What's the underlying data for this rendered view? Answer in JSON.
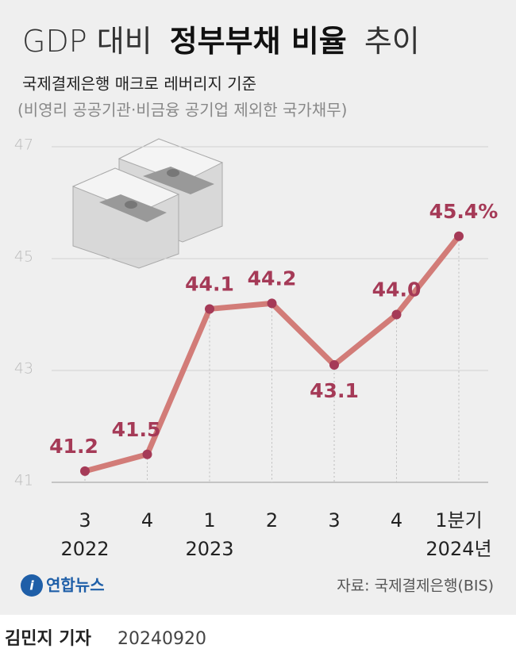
{
  "chart_data": {
    "type": "line",
    "title": [
      "GDP 대비",
      "정부부채 비율",
      "추이"
    ],
    "subtitle": "국제결제은행 매크로 레버리지 기준",
    "note": "(비영리 공공기관·비금융 공기업 제외한 국가채무)",
    "categories": [
      "3",
      "4",
      "1",
      "2",
      "3",
      "4",
      "1분기"
    ],
    "year_labels": [
      "2022",
      null,
      "2023",
      null,
      null,
      null,
      "2024년"
    ],
    "series": [
      {
        "name": "GDP 대비 정부부채 비율",
        "color": "#d27c78",
        "marker_color": "#a53a57",
        "values": [
          41.2,
          41.5,
          44.1,
          44.2,
          43.1,
          44.0,
          45.4
        ],
        "value_labels": [
          "41.2",
          "41.5",
          "44.1",
          "44.2",
          "43.1",
          "44.0",
          "45.4%"
        ]
      }
    ],
    "ylim": [
      41,
      47
    ],
    "yticks": [
      41,
      43,
      45,
      47
    ],
    "grid": true,
    "logo": "연합뉴스",
    "source": "자료: 국제결제은행(BIS)",
    "byline": {
      "author": "김민지 기자",
      "date": "20240920"
    }
  }
}
